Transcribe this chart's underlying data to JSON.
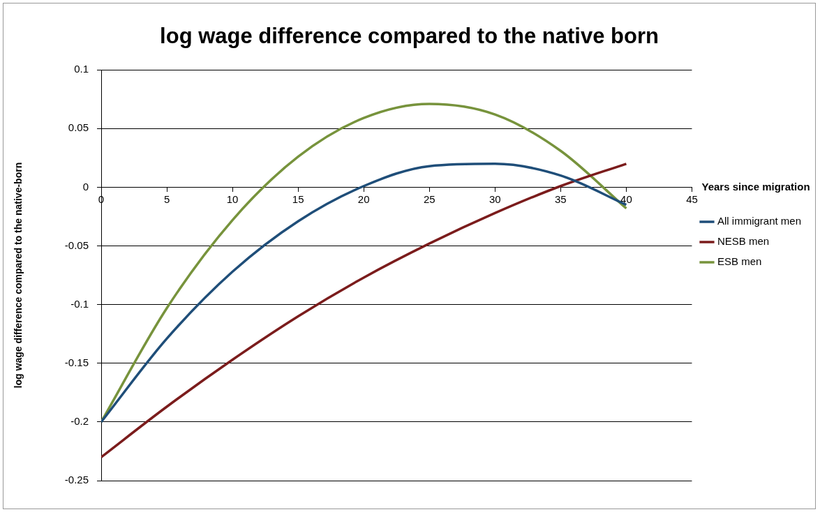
{
  "chart_data": {
    "type": "line",
    "title": "log wage difference compared to the native born",
    "xlabel": "Years since migration",
    "ylabel": "log wage difference compared to the native-born",
    "x": [
      0,
      5,
      10,
      15,
      20,
      25,
      30,
      35,
      40
    ],
    "series": [
      {
        "name": "All immigrant men",
        "color": "#1f4e79",
        "values": [
          -0.2,
          -0.129,
          -0.072,
          -0.029,
          0.001,
          0.018,
          0.02,
          0.01,
          -0.015
        ]
      },
      {
        "name": "NESB men",
        "color": "#7b1c1c",
        "values": [
          -0.23,
          -0.187,
          -0.147,
          -0.11,
          -0.077,
          -0.048,
          -0.022,
          0.001,
          0.02
        ]
      },
      {
        "name": "ESB men",
        "color": "#77933c",
        "values": [
          -0.2,
          -0.103,
          -0.028,
          0.026,
          0.059,
          0.071,
          0.062,
          0.031,
          -0.018
        ]
      }
    ],
    "xlim": [
      0,
      45
    ],
    "xticks": [
      0,
      5,
      10,
      15,
      20,
      25,
      30,
      35,
      40,
      45
    ],
    "ylim": [
      -0.25,
      0.1
    ],
    "yticks": [
      -0.25,
      -0.2,
      -0.15,
      -0.1,
      -0.05,
      0,
      0.05,
      0.1
    ],
    "grid": "y",
    "legend": "right",
    "marker": "none"
  }
}
